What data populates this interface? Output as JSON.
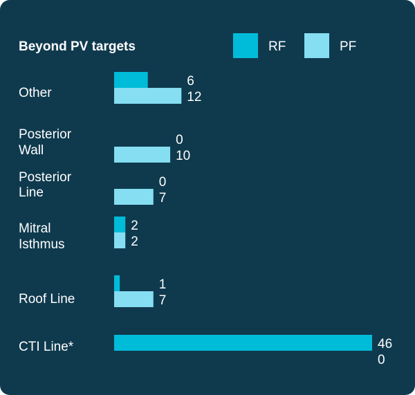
{
  "chart_data": {
    "type": "bar",
    "title": "Beyond PV targets",
    "categories": [
      [
        "Other"
      ],
      [
        "Posterior",
        "Wall"
      ],
      [
        "Posterior",
        "Line"
      ],
      [
        "Mitral",
        "Isthmus"
      ],
      [
        "Roof Line"
      ],
      [
        "CTI Line*"
      ]
    ],
    "series": [
      {
        "name": "RF",
        "color": "#00bcd9",
        "values": [
          6,
          0,
          0,
          2,
          1,
          46
        ]
      },
      {
        "name": "PF",
        "color": "#85def2",
        "values": [
          12,
          10,
          7,
          2,
          7,
          0
        ]
      }
    ],
    "orientation": "horizontal",
    "xlim": [
      0,
      46
    ],
    "grid": false,
    "legend": "top-right"
  }
}
